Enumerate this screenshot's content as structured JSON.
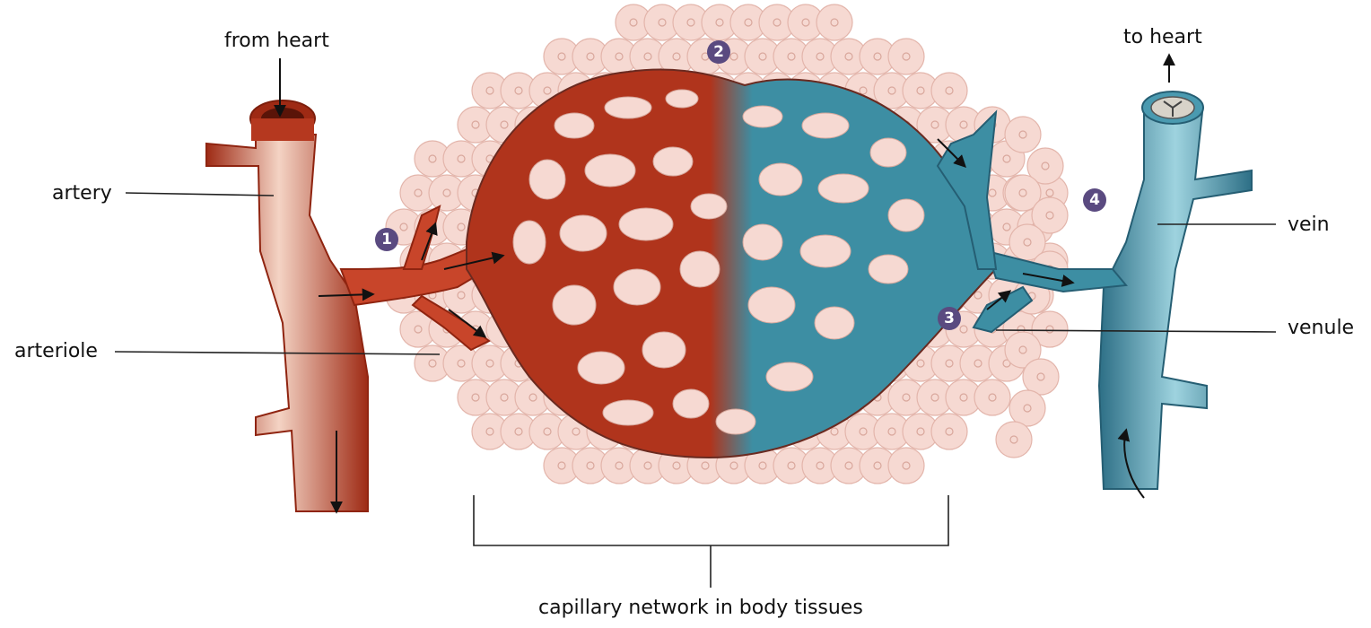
{
  "labels": {
    "from_heart": "from heart",
    "to_heart": "to heart",
    "artery": "artery",
    "arteriole": "arteriole",
    "vein": "vein",
    "venule": "venule",
    "capillary_network": "capillary network in body tissues"
  },
  "markers": [
    "1",
    "2",
    "3",
    "4"
  ],
  "colors": {
    "artery": "#b5381f",
    "artery_highlight": "#f7ddd0",
    "vein": "#3e8fa5",
    "vein_highlight": "#a9dbe6",
    "marker": "#5a4a80",
    "tissue_cell": "#f6d9d2"
  }
}
